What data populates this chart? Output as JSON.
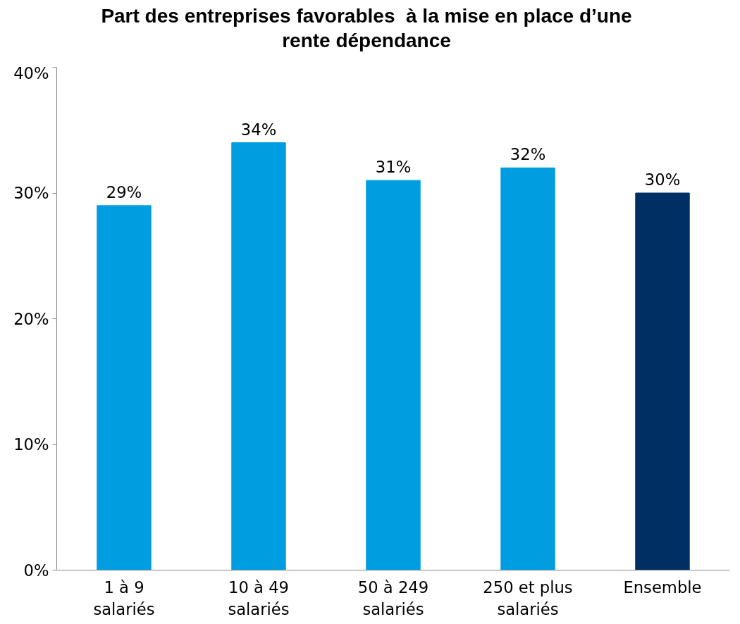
{
  "chart_data": {
    "type": "bar",
    "title": "Part des entreprises favorables  à la mise en place d’une rente dépendance",
    "categories": [
      "1 à 9\nsalariés",
      "10 à 49\nsalariés",
      "50 à 249\nsalariés",
      "250 et plus\nsalariés",
      "Ensemble"
    ],
    "values": [
      29,
      34,
      31,
      32,
      30
    ],
    "colors": [
      "#009ee0",
      "#009ee0",
      "#009ee0",
      "#009ee0",
      "#003063"
    ],
    "value_labels": [
      "29%",
      "34%",
      "31%",
      "32%",
      "30%"
    ],
    "ylim": [
      0,
      40
    ],
    "yticks": [
      {
        "value": 0,
        "label": "0%"
      },
      {
        "value": 10,
        "label": "10%"
      },
      {
        "value": 20,
        "label": "20%"
      },
      {
        "value": 30,
        "label": "30%"
      },
      {
        "value": 40,
        "label": "40%"
      }
    ],
    "grid": false
  }
}
